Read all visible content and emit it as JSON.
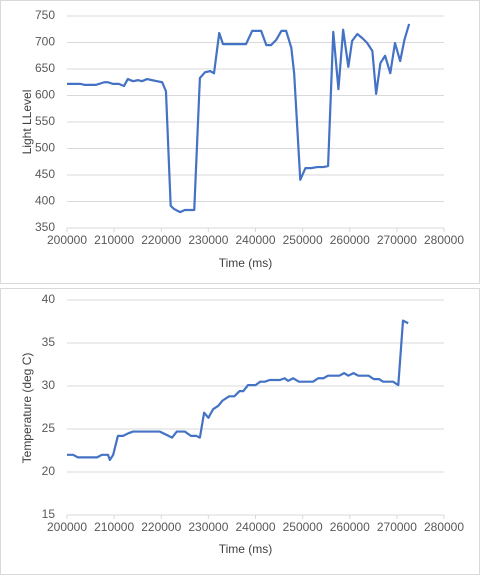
{
  "chart_data": [
    {
      "type": "line",
      "x_label": "Time (ms)",
      "y_label": "Light LLevel",
      "xlim": [
        200000,
        280000
      ],
      "xticks": [
        200000,
        210000,
        220000,
        230000,
        240000,
        250000,
        260000,
        270000,
        280000
      ],
      "ylim": [
        350,
        750
      ],
      "yticks": [
        350,
        400,
        450,
        500,
        550,
        600,
        650,
        700,
        750
      ],
      "grid": true,
      "series": [
        {
          "color": "#4472c4",
          "x": [
            200000,
            202800,
            203800,
            206100,
            207900,
            208700,
            209700,
            211000,
            212100,
            212900,
            214000,
            215100,
            215900,
            217000,
            218000,
            219100,
            220200,
            221000,
            222000,
            222700,
            224000,
            225000,
            227000,
            228200,
            229300,
            230400,
            231200,
            232300,
            233100,
            234600,
            236700,
            238000,
            239300,
            241200,
            242300,
            243300,
            244400,
            245500,
            246500,
            247600,
            248200,
            249500,
            250600,
            251800,
            253100,
            254400,
            255400,
            256500,
            257600,
            258600,
            259700,
            260500,
            261600,
            262700,
            263700,
            264800,
            265600,
            266500,
            267500,
            268600,
            269600,
            270700,
            271600,
            272600
          ],
          "values": [
            622,
            622,
            620,
            620,
            625,
            625,
            622,
            622,
            618,
            631,
            627,
            629,
            627,
            631,
            629,
            627,
            625,
            608,
            392,
            386,
            380,
            384,
            384,
            633,
            644,
            646,
            642,
            718,
            697,
            697,
            697,
            697,
            722,
            722,
            695,
            695,
            705,
            722,
            722,
            690,
            642,
            441,
            463,
            463,
            465,
            465,
            467,
            720,
            612,
            724,
            654,
            703,
            716,
            708,
            699,
            684,
            603,
            661,
            675,
            642,
            699,
            665,
            705,
            735
          ]
        }
      ]
    },
    {
      "type": "line",
      "x_label": "Time (ms)",
      "y_label": "Temperature (deg C)",
      "xlim": [
        200000,
        280000
      ],
      "xticks": [
        200000,
        210000,
        220000,
        230000,
        240000,
        250000,
        260000,
        270000,
        280000
      ],
      "ylim": [
        15,
        40
      ],
      "yticks": [
        15,
        20,
        25,
        30,
        35,
        40
      ],
      "grid": true,
      "series": [
        {
          "color": "#4472c4",
          "x": [
            200000,
            201300,
            202300,
            204900,
            206400,
            207400,
            208700,
            209100,
            209800,
            210800,
            211900,
            213000,
            214000,
            219700,
            220800,
            222300,
            223300,
            225000,
            226300,
            227400,
            228200,
            229100,
            230000,
            231000,
            232100,
            233000,
            234400,
            235500,
            236600,
            237400,
            238400,
            240000,
            241000,
            242000,
            243000,
            244100,
            245200,
            246200,
            246900,
            248000,
            249200,
            250700,
            252200,
            253300,
            254400,
            255400,
            257800,
            258800,
            259700,
            260800,
            261800,
            264000,
            265100,
            266200,
            267100,
            269200,
            270300,
            271300,
            272400
          ],
          "values": [
            22.0,
            22.0,
            21.7,
            21.7,
            21.7,
            22.0,
            22.0,
            21.4,
            22.0,
            24.2,
            24.2,
            24.5,
            24.7,
            24.7,
            24.4,
            24.0,
            24.7,
            24.7,
            24.2,
            24.2,
            24.0,
            26.9,
            26.3,
            27.3,
            27.7,
            28.3,
            28.8,
            28.8,
            29.4,
            29.4,
            30.1,
            30.1,
            30.5,
            30.5,
            30.7,
            30.7,
            30.7,
            30.9,
            30.6,
            30.9,
            30.5,
            30.5,
            30.5,
            30.9,
            30.9,
            31.2,
            31.2,
            31.5,
            31.2,
            31.5,
            31.2,
            31.2,
            30.8,
            30.8,
            30.5,
            30.5,
            30.1,
            37.6,
            37.3
          ]
        }
      ]
    }
  ]
}
